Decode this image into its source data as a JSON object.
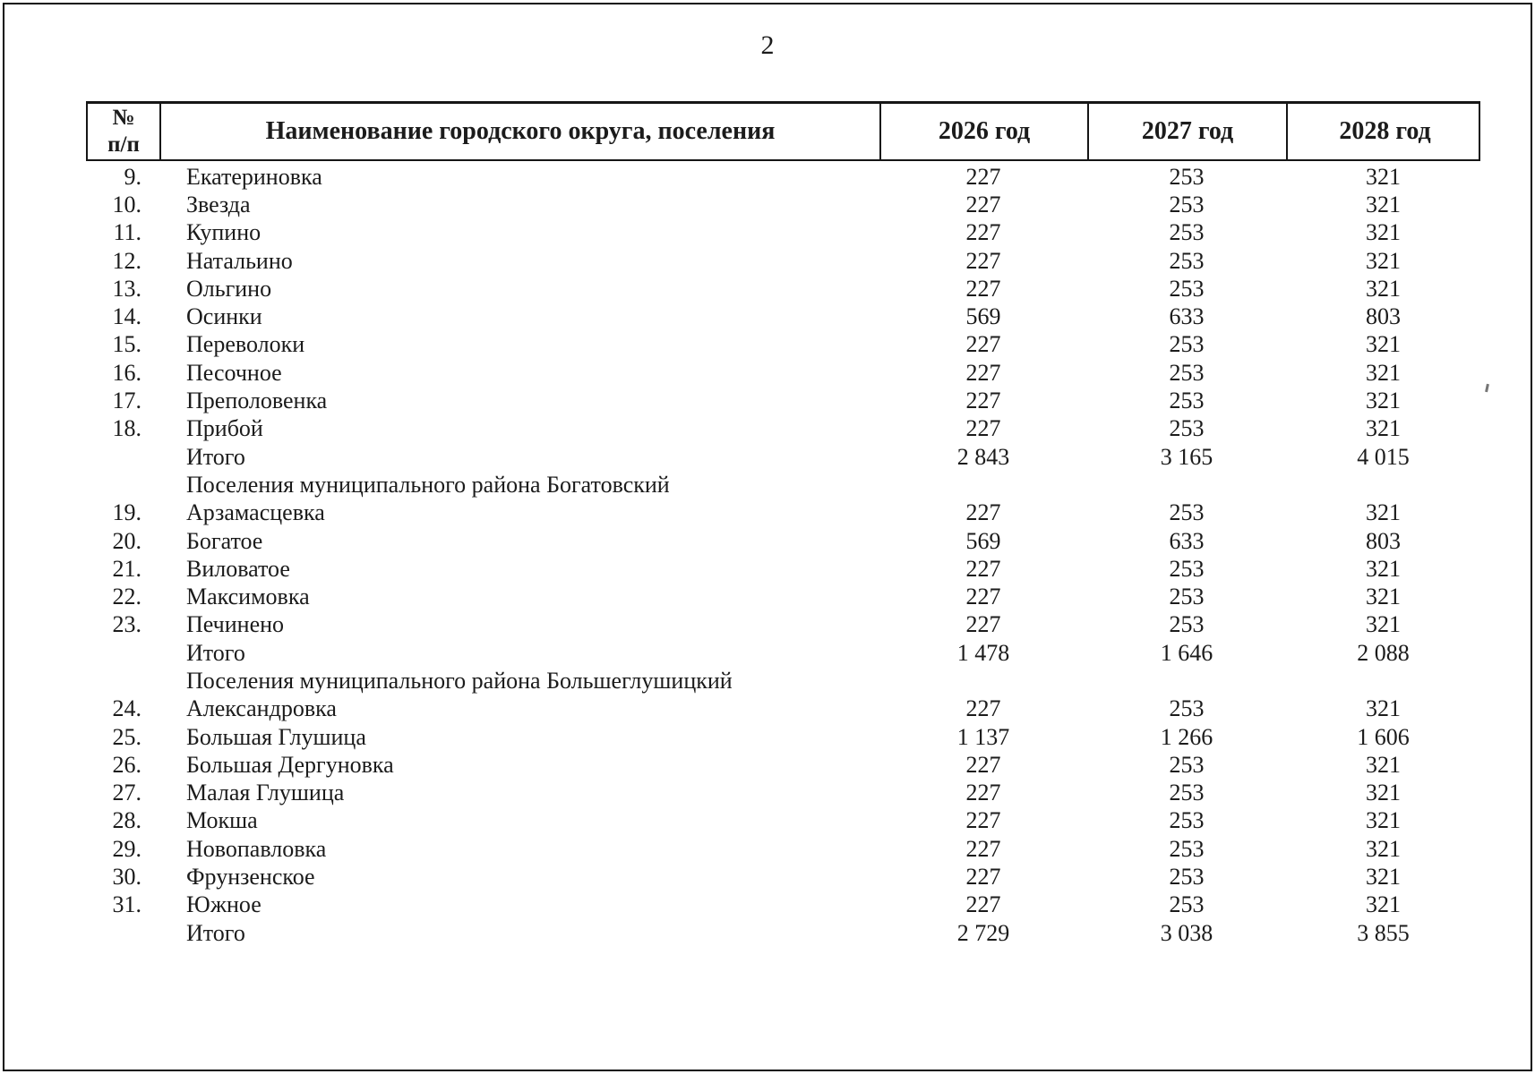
{
  "page": {
    "number": "2"
  },
  "table": {
    "headers": {
      "num_top": "№",
      "num_bottom": "п/п",
      "name": "Наименование городского округа, поселения",
      "y2026": "2026 год",
      "y2027": "2027 год",
      "y2028": "2028 год"
    },
    "rows": [
      {
        "type": "item",
        "num": "9.",
        "name": "Екатериновка",
        "values": [
          "227",
          "253",
          "321"
        ]
      },
      {
        "type": "item",
        "num": "10.",
        "name": "Звезда",
        "values": [
          "227",
          "253",
          "321"
        ]
      },
      {
        "type": "item",
        "num": "11.",
        "name": "Купино",
        "values": [
          "227",
          "253",
          "321"
        ]
      },
      {
        "type": "item",
        "num": "12.",
        "name": "Натальино",
        "values": [
          "227",
          "253",
          "321"
        ]
      },
      {
        "type": "item",
        "num": "13.",
        "name": "Ольгино",
        "values": [
          "227",
          "253",
          "321"
        ]
      },
      {
        "type": "item",
        "num": "14.",
        "name": "Осинки",
        "values": [
          "569",
          "633",
          "803"
        ]
      },
      {
        "type": "item",
        "num": "15.",
        "name": "Переволоки",
        "values": [
          "227",
          "253",
          "321"
        ]
      },
      {
        "type": "item",
        "num": "16.",
        "name": "Песочное",
        "values": [
          "227",
          "253",
          "321"
        ]
      },
      {
        "type": "item",
        "num": "17.",
        "name": "Преполовенка",
        "values": [
          "227",
          "253",
          "321"
        ]
      },
      {
        "type": "item",
        "num": "18.",
        "name": "Прибой",
        "values": [
          "227",
          "253",
          "321"
        ]
      },
      {
        "type": "total",
        "num": "",
        "name": "Итого",
        "values": [
          "2 843",
          "3 165",
          "4 015"
        ]
      },
      {
        "type": "section",
        "num": "",
        "name": "Поселения муниципального района Богатовский",
        "values": [
          "",
          "",
          ""
        ]
      },
      {
        "type": "item",
        "num": "19.",
        "name": "Арзамасцевка",
        "values": [
          "227",
          "253",
          "321"
        ]
      },
      {
        "type": "item",
        "num": "20.",
        "name": "Богатое",
        "values": [
          "569",
          "633",
          "803"
        ]
      },
      {
        "type": "item",
        "num": "21.",
        "name": "Виловатое",
        "values": [
          "227",
          "253",
          "321"
        ]
      },
      {
        "type": "item",
        "num": "22.",
        "name": "Максимовка",
        "values": [
          "227",
          "253",
          "321"
        ]
      },
      {
        "type": "item",
        "num": "23.",
        "name": "Печинено",
        "values": [
          "227",
          "253",
          "321"
        ]
      },
      {
        "type": "total",
        "num": "",
        "name": "Итого",
        "values": [
          "1 478",
          "1 646",
          "2 088"
        ]
      },
      {
        "type": "section",
        "num": "",
        "name": "Поселения муниципального района Большеглушицкий",
        "values": [
          "",
          "",
          ""
        ]
      },
      {
        "type": "item",
        "num": "24.",
        "name": "Александровка",
        "values": [
          "227",
          "253",
          "321"
        ]
      },
      {
        "type": "item",
        "num": "25.",
        "name": "Большая Глушица",
        "values": [
          "1 137",
          "1 266",
          "1 606"
        ]
      },
      {
        "type": "item",
        "num": "26.",
        "name": "Большая Дергуновка",
        "values": [
          "227",
          "253",
          "321"
        ]
      },
      {
        "type": "item",
        "num": "27.",
        "name": "Малая Глушица",
        "values": [
          "227",
          "253",
          "321"
        ]
      },
      {
        "type": "item",
        "num": "28.",
        "name": "Мокша",
        "values": [
          "227",
          "253",
          "321"
        ]
      },
      {
        "type": "item",
        "num": "29.",
        "name": "Новопавловка",
        "values": [
          "227",
          "253",
          "321"
        ]
      },
      {
        "type": "item",
        "num": "30.",
        "name": "Фрунзенское",
        "values": [
          "227",
          "253",
          "321"
        ]
      },
      {
        "type": "item",
        "num": "31.",
        "name": "Южное",
        "values": [
          "227",
          "253",
          "321"
        ]
      },
      {
        "type": "total",
        "num": "",
        "name": "Итого",
        "values": [
          "2 729",
          "3 038",
          "3 855"
        ]
      }
    ]
  }
}
